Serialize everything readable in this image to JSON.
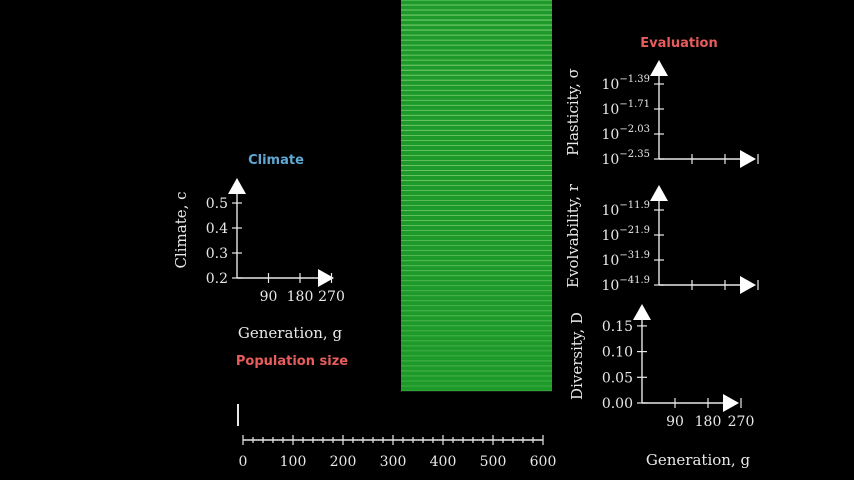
{
  "colors": {
    "background": "#000000",
    "axis": "#e8e8e8",
    "climate_title": "#5fa8d3",
    "evaluation_title": "#e85c5c",
    "population_title": "#e85c5c",
    "grid_fill": "#1d9a2a",
    "grid_lines": "#9fe08f"
  },
  "chart_data": [
    {
      "id": "climate",
      "type": "line",
      "title": "Climate",
      "xlabel": "Generation, g",
      "ylabel": "Climate, c",
      "x_ticks": [
        "90",
        "180",
        "270"
      ],
      "y_ticks": [
        "0.2",
        "0.3",
        "0.4",
        "0.5"
      ],
      "xlim": [
        0,
        300
      ],
      "ylim": [
        0.2,
        0.5
      ],
      "series": []
    },
    {
      "id": "plasticity",
      "type": "line",
      "title": "Evaluation",
      "xlabel": "",
      "ylabel": "Plasticity, σ",
      "y_ticks": [
        {
          "base": "10",
          "exp": "−2.35"
        },
        {
          "base": "10",
          "exp": "−2.03"
        },
        {
          "base": "10",
          "exp": "−1.71"
        },
        {
          "base": "10",
          "exp": "−1.39"
        }
      ],
      "y_scale": "log",
      "xlim": [
        0,
        300
      ],
      "series": []
    },
    {
      "id": "evolvability",
      "type": "line",
      "xlabel": "",
      "ylabel": "Evolvability, r",
      "y_ticks": [
        {
          "base": "10",
          "exp": "−41.9"
        },
        {
          "base": "10",
          "exp": "−31.9"
        },
        {
          "base": "10",
          "exp": "−21.9"
        },
        {
          "base": "10",
          "exp": "−11.9"
        }
      ],
      "y_scale": "log",
      "xlim": [
        0,
        300
      ],
      "series": []
    },
    {
      "id": "diversity",
      "type": "line",
      "xlabel": "Generation, g",
      "ylabel": "Diversity, D",
      "x_ticks": [
        "90",
        "180",
        "270"
      ],
      "y_ticks": [
        "0.00",
        "0.05",
        "0.10",
        "0.15"
      ],
      "xlim": [
        0,
        300
      ],
      "ylim": [
        0,
        0.15
      ],
      "series": []
    },
    {
      "id": "population",
      "type": "bar",
      "title": "Population size",
      "x_ticks": [
        "0",
        "100",
        "200",
        "300",
        "400",
        "500",
        "600"
      ],
      "xlim": [
        0,
        600
      ],
      "values": [
        0
      ]
    },
    {
      "id": "population-grid",
      "type": "heatmap",
      "rows": 78
    }
  ]
}
